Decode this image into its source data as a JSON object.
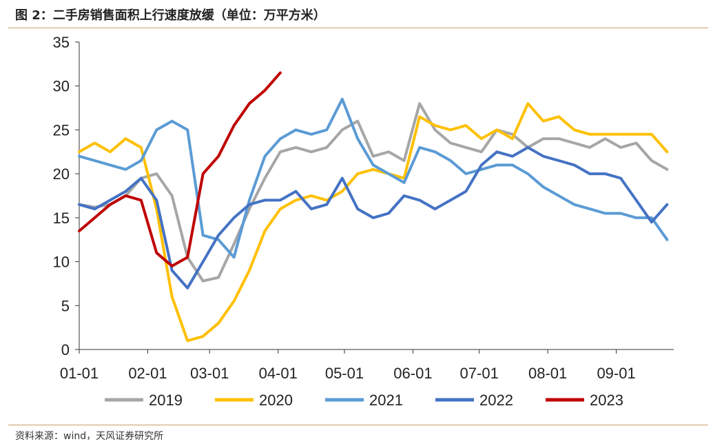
{
  "title": "图 2：二手房销售面积上行速度放缓（单位：万平方米）",
  "source": "资料来源：wind，天风证券研究所",
  "chart_data": {
    "type": "line",
    "ylim": [
      0,
      35
    ],
    "yticks": [
      "0",
      "5",
      "10",
      "15",
      "20",
      "25",
      "30",
      "35"
    ],
    "xticks": [
      "01-01",
      "02-01",
      "03-01",
      "04-01",
      "05-01",
      "06-01",
      "07-01",
      "08-01",
      "09-01"
    ],
    "xlim": [
      "01-01",
      "09-27"
    ],
    "legend_position": "bottom",
    "grid": false,
    "series": [
      {
        "name": "2019",
        "color": "#a6a6a6",
        "x": [
          "01-01",
          "01-08",
          "01-15",
          "01-22",
          "01-29",
          "02-05",
          "02-12",
          "02-19",
          "02-26",
          "03-05",
          "03-12",
          "03-19",
          "03-26",
          "04-02",
          "04-09",
          "04-16",
          "04-23",
          "04-30",
          "05-07",
          "05-14",
          "05-21",
          "05-28",
          "06-04",
          "06-11",
          "06-18",
          "06-25",
          "07-02",
          "07-09",
          "07-16",
          "07-23",
          "07-30",
          "08-06",
          "08-13",
          "08-20",
          "08-27",
          "09-03",
          "09-10",
          "09-17",
          "09-24"
        ],
        "values": [
          16.5,
          16.2,
          16.5,
          17.5,
          19.5,
          20,
          17.5,
          10.5,
          7.8,
          8.2,
          12,
          16,
          19.5,
          22.5,
          23,
          22.5,
          23,
          25,
          26,
          22,
          22.5,
          21.5,
          28,
          25,
          23.5,
          23,
          22.5,
          25,
          24.5,
          23,
          24,
          24,
          23.5,
          23,
          24,
          23,
          23.5,
          21.5,
          20.5
        ]
      },
      {
        "name": "2020",
        "color": "#ffc000",
        "x": [
          "01-01",
          "01-08",
          "01-15",
          "01-22",
          "01-29",
          "02-05",
          "02-12",
          "02-19",
          "02-26",
          "03-05",
          "03-12",
          "03-19",
          "03-26",
          "04-02",
          "04-09",
          "04-16",
          "04-23",
          "04-30",
          "05-07",
          "05-14",
          "05-21",
          "05-28",
          "06-04",
          "06-11",
          "06-18",
          "06-25",
          "07-02",
          "07-09",
          "07-16",
          "07-23",
          "07-30",
          "08-06",
          "08-13",
          "08-20",
          "08-27",
          "09-03",
          "09-10",
          "09-17",
          "09-24"
        ],
        "values": [
          22.5,
          23.5,
          22.5,
          24,
          23,
          16,
          6,
          1,
          1.5,
          3,
          5.5,
          9,
          13.5,
          16,
          17,
          17.5,
          17,
          18,
          20,
          20.5,
          20,
          19.5,
          26.5,
          25.5,
          25,
          25.5,
          24,
          25,
          24,
          28,
          26,
          26.5,
          25,
          24.5,
          24.5,
          24.5,
          24.5,
          24.5,
          22.5
        ]
      },
      {
        "name": "2021",
        "color": "#5b9bd5",
        "x": [
          "01-01",
          "01-08",
          "01-15",
          "01-22",
          "01-29",
          "02-05",
          "02-12",
          "02-19",
          "02-26",
          "03-05",
          "03-12",
          "03-19",
          "03-26",
          "04-02",
          "04-09",
          "04-16",
          "04-23",
          "04-30",
          "05-07",
          "05-14",
          "05-21",
          "05-28",
          "06-04",
          "06-11",
          "06-18",
          "06-25",
          "07-02",
          "07-09",
          "07-16",
          "07-23",
          "07-30",
          "08-06",
          "08-13",
          "08-20",
          "08-27",
          "09-03",
          "09-10",
          "09-17",
          "09-24"
        ],
        "values": [
          22,
          21.5,
          21,
          20.5,
          21.5,
          25,
          26,
          25,
          13,
          12.5,
          10.5,
          17,
          22,
          24,
          25,
          24.5,
          25,
          28.5,
          24,
          21,
          20,
          19,
          23,
          22.5,
          21.5,
          20,
          20.5,
          21,
          21,
          20,
          18.5,
          17.5,
          16.5,
          16,
          15.5,
          15.5,
          15,
          15,
          12.5
        ]
      },
      {
        "name": "2022",
        "color": "#4472c4",
        "x": [
          "01-01",
          "01-08",
          "01-15",
          "01-22",
          "01-29",
          "02-05",
          "02-12",
          "02-19",
          "02-26",
          "03-05",
          "03-12",
          "03-19",
          "03-26",
          "04-02",
          "04-09",
          "04-16",
          "04-23",
          "04-30",
          "05-07",
          "05-14",
          "05-21",
          "05-28",
          "06-04",
          "06-11",
          "06-18",
          "06-25",
          "07-02",
          "07-09",
          "07-16",
          "07-23",
          "07-30",
          "08-06",
          "08-13",
          "08-20",
          "08-27",
          "09-03",
          "09-10",
          "09-17",
          "09-24"
        ],
        "values": [
          16.5,
          16,
          17,
          18,
          19.5,
          17,
          9,
          7,
          10,
          13,
          15,
          16.5,
          17,
          17,
          18,
          16,
          16.5,
          19.5,
          16,
          15,
          15.5,
          17.5,
          17,
          16,
          17,
          18,
          21,
          22.5,
          22,
          23,
          22,
          21.5,
          21,
          20,
          20,
          19.5,
          17,
          14.5,
          16.5
        ]
      },
      {
        "name": "2023",
        "color": "#c00000",
        "x": [
          "01-01",
          "01-08",
          "01-15",
          "01-22",
          "01-29",
          "02-05",
          "02-12",
          "02-19",
          "02-26",
          "03-05",
          "03-12",
          "03-19",
          "03-26",
          "04-02"
        ],
        "values": [
          13.5,
          15,
          16.5,
          17.5,
          17,
          11,
          9.5,
          10.5,
          20,
          22,
          25.5,
          28,
          29.5,
          31.5
        ]
      }
    ]
  }
}
